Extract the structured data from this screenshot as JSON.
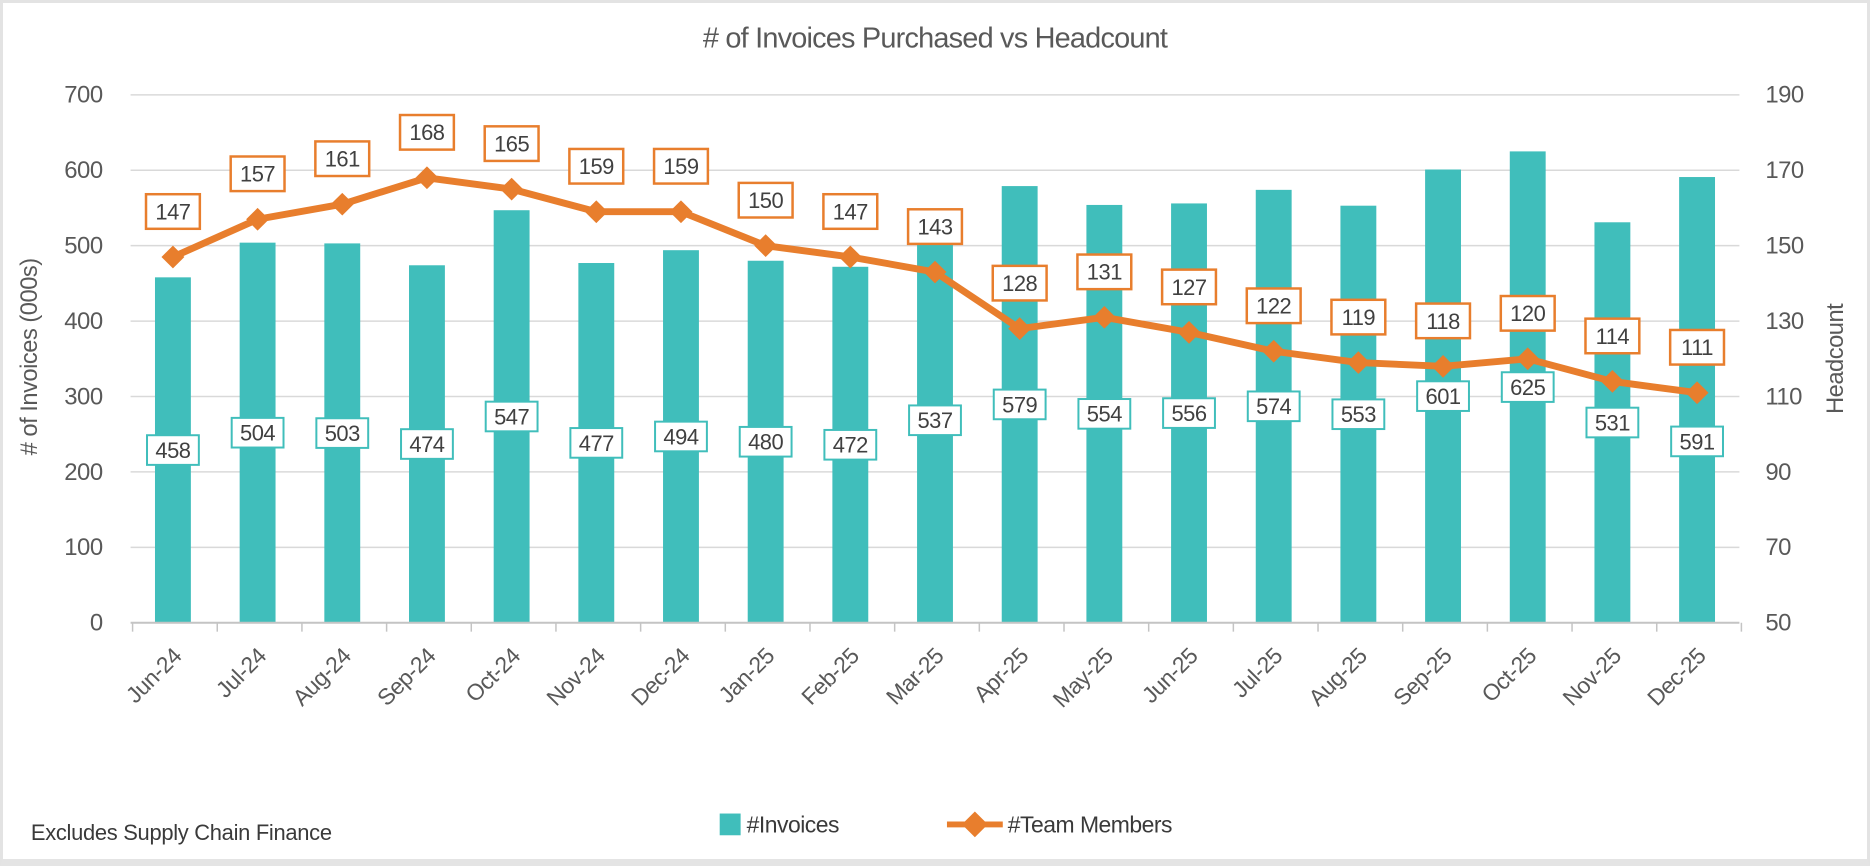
{
  "footnote": "Excludes Supply Chain Finance",
  "colors": {
    "bar": "#40BEBB",
    "line": "#E87E2D",
    "grid": "#D9D9D9",
    "axis_line": "#C4C4C4",
    "tick_text": "#595959",
    "label_text": "#404040",
    "label_box_fill": "#FFFFFF"
  },
  "chart_data": {
    "type": "combo-bar-line",
    "title": "# of Invoices Purchased vs Headcount",
    "categories": [
      "Jun-24",
      "Jul-24",
      "Aug-24",
      "Sep-24",
      "Oct-24",
      "Nov-24",
      "Dec-24",
      "Jan-25",
      "Feb-25",
      "Mar-25",
      "Apr-25",
      "May-25",
      "Jun-25",
      "Jul-25",
      "Aug-25",
      "Sep-25",
      "Oct-25",
      "Nov-25",
      "Dec-25"
    ],
    "series": [
      {
        "name": "#Invoices",
        "type": "bar",
        "axis": "left",
        "color": "#40BEBB",
        "values": [
          458,
          504,
          503,
          474,
          547,
          477,
          494,
          480,
          472,
          537,
          579,
          554,
          556,
          574,
          553,
          601,
          625,
          531,
          591
        ]
      },
      {
        "name": "#Team Members",
        "type": "line",
        "axis": "right",
        "color": "#E87E2D",
        "values": [
          147,
          157,
          161,
          168,
          165,
          159,
          159,
          150,
          147,
          143,
          128,
          131,
          127,
          122,
          119,
          118,
          120,
          114,
          111
        ]
      }
    ],
    "left_axis": {
      "title": "# of Invoices (000s)",
      "min": 0,
      "max": 700,
      "step": 100,
      "ticks": [
        "0",
        "100",
        "200",
        "300",
        "400",
        "500",
        "600",
        "700"
      ]
    },
    "right_axis": {
      "title": "Headcount",
      "min": 50,
      "max": 190,
      "step": 20,
      "ticks": [
        "50",
        "70",
        "90",
        "110",
        "130",
        "150",
        "170",
        "190"
      ]
    },
    "grid": true,
    "data_labels": true,
    "legend_position": "bottom"
  }
}
